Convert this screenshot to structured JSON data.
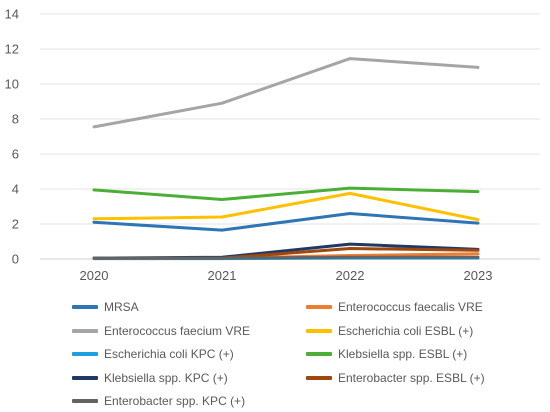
{
  "chart_data": {
    "type": "line",
    "title": "",
    "xlabel": "",
    "ylabel": "",
    "x": [
      "2020",
      "2021",
      "2022",
      "2023"
    ],
    "ylim": [
      0,
      14
    ],
    "yticks": [
      "0",
      "2",
      "4",
      "6",
      "8",
      "10",
      "12",
      "14"
    ],
    "grid": true,
    "legend_position": "bottom",
    "series": [
      {
        "name": "MRSA",
        "color": "#2E75B6",
        "values": [
          2.1,
          1.65,
          2.6,
          2.05
        ]
      },
      {
        "name": "Enterococcus faecalis VRE",
        "color": "#ED7D31",
        "values": [
          0.05,
          0.05,
          0.2,
          0.3
        ]
      },
      {
        "name": "Enterococcus faecium VRE",
        "color": "#A5A5A5",
        "values": [
          7.55,
          8.9,
          11.45,
          10.95
        ]
      },
      {
        "name": "Escherichia coli ESBL (+)",
        "color": "#FFC000",
        "values": [
          2.3,
          2.4,
          3.75,
          2.25
        ]
      },
      {
        "name": "Escherichia coli KPC (+)",
        "color": "#1F9FDF",
        "values": [
          0.02,
          0.02,
          0.05,
          0.05
        ]
      },
      {
        "name": "Klebsiella spp. ESBL (+)",
        "color": "#4CAF35",
        "values": [
          3.95,
          3.4,
          4.05,
          3.85
        ]
      },
      {
        "name": "Klebsiella spp. KPC (+)",
        "color": "#1F3864",
        "values": [
          0.05,
          0.1,
          0.85,
          0.55
        ]
      },
      {
        "name": "Enterobacter spp. ESBL (+)",
        "color": "#9E480E",
        "values": [
          0.05,
          0.05,
          0.6,
          0.5
        ]
      },
      {
        "name": "Enterobacter spp. KPC (+)",
        "color": "#636363",
        "values": [
          0.05,
          0.05,
          0.1,
          0.1
        ]
      }
    ]
  }
}
